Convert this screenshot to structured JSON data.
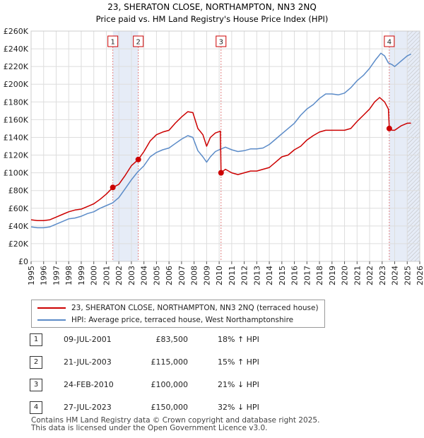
{
  "chart_data": {
    "type": "line",
    "title": "23, SHERATON CLOSE, NORTHAMPTON, NN3 2NQ",
    "subtitle": "Price paid vs. HM Land Registry's House Price Index (HPI)",
    "xlabel": "",
    "ylabel": "",
    "xlim": [
      1995,
      2026
    ],
    "ylim": [
      0,
      260000
    ],
    "y_ticks": [
      0,
      20000,
      40000,
      60000,
      80000,
      100000,
      120000,
      140000,
      160000,
      180000,
      200000,
      220000,
      240000,
      260000
    ],
    "y_tick_labels": [
      "£0",
      "£20K",
      "£40K",
      "£60K",
      "£80K",
      "£100K",
      "£120K",
      "£140K",
      "£160K",
      "£180K",
      "£200K",
      "£220K",
      "£240K",
      "£260K"
    ],
    "x_ticks": [
      1995,
      1996,
      1997,
      1998,
      1999,
      2000,
      2001,
      2002,
      2003,
      2004,
      2005,
      2006,
      2007,
      2008,
      2009,
      2010,
      2011,
      2012,
      2013,
      2014,
      2015,
      2016,
      2017,
      2018,
      2019,
      2020,
      2021,
      2022,
      2023,
      2024,
      2025,
      2026
    ],
    "x_tick_labels": [
      "1995",
      "1996",
      "1997",
      "1998",
      "1999",
      "2000",
      "2001",
      "2002",
      "2003",
      "2004",
      "2005",
      "2006",
      "2007",
      "2008",
      "2009",
      "2010",
      "2011",
      "2012",
      "2013",
      "2014",
      "2015",
      "2016",
      "2017",
      "2018",
      "2019",
      "2020",
      "2021",
      "2022",
      "2023",
      "2024",
      "2025",
      "2026"
    ],
    "grid": true,
    "shaded_ranges": [
      [
        2001.52,
        2003.55
      ],
      [
        2023.57,
        2026
      ]
    ],
    "hatched_from": 2025.0,
    "series": [
      {
        "name": "23, SHERATON CLOSE, NORTHAMPTON, NN3 2NQ (terraced house)",
        "color": "#cc0000",
        "x": [
          1995.0,
          1995.5,
          1996.0,
          1996.5,
          1997.0,
          1997.5,
          1998.0,
          1998.5,
          1999.0,
          1999.5,
          2000.0,
          2000.5,
          2001.0,
          2001.52,
          2002.0,
          2002.5,
          2003.0,
          2003.55,
          2004.0,
          2004.5,
          2005.0,
          2005.5,
          2006.0,
          2006.5,
          2007.0,
          2007.5,
          2007.9,
          2008.3,
          2008.7,
          2009.0,
          2009.3,
          2009.7,
          2010.1,
          2010.15,
          2010.5,
          2011.0,
          2011.5,
          2012.0,
          2012.5,
          2013.0,
          2013.5,
          2014.0,
          2014.5,
          2015.0,
          2015.5,
          2016.0,
          2016.5,
          2017.0,
          2017.5,
          2018.0,
          2018.5,
          2019.0,
          2019.5,
          2020.0,
          2020.5,
          2021.0,
          2021.5,
          2022.0,
          2022.4,
          2022.8,
          2023.2,
          2023.5,
          2023.57,
          2023.8,
          2024.0,
          2024.5,
          2025.0,
          2025.3
        ],
        "values": [
          47000,
          46000,
          46000,
          47000,
          50000,
          53000,
          56000,
          58000,
          59000,
          62000,
          65000,
          70000,
          76000,
          83500,
          87000,
          97000,
          108000,
          115000,
          124000,
          136000,
          143000,
          146000,
          148000,
          156000,
          163000,
          169000,
          168000,
          150000,
          143000,
          130000,
          140000,
          145000,
          147000,
          100000,
          104000,
          100000,
          98000,
          100000,
          102000,
          102000,
          104000,
          106000,
          112000,
          118000,
          120000,
          126000,
          130000,
          137000,
          142000,
          146000,
          148000,
          148000,
          148000,
          148000,
          150000,
          158000,
          165000,
          172000,
          180000,
          185000,
          180000,
          172000,
          150000,
          148000,
          148000,
          153000,
          156000,
          156000
        ]
      },
      {
        "name": "HPI: Average price, terraced house, West Northamptonshire",
        "color": "#5b8bc8",
        "x": [
          1995.0,
          1995.5,
          1996.0,
          1996.5,
          1997.0,
          1997.5,
          1998.0,
          1998.5,
          1999.0,
          1999.5,
          2000.0,
          2000.5,
          2001.0,
          2001.5,
          2002.0,
          2002.5,
          2003.0,
          2003.5,
          2004.0,
          2004.5,
          2005.0,
          2005.5,
          2006.0,
          2006.5,
          2007.0,
          2007.5,
          2007.9,
          2008.3,
          2008.7,
          2009.0,
          2009.3,
          2009.7,
          2010.0,
          2010.5,
          2011.0,
          2011.5,
          2012.0,
          2012.5,
          2013.0,
          2013.5,
          2014.0,
          2014.5,
          2015.0,
          2015.5,
          2016.0,
          2016.5,
          2017.0,
          2017.5,
          2018.0,
          2018.5,
          2019.0,
          2019.5,
          2020.0,
          2020.5,
          2021.0,
          2021.5,
          2022.0,
          2022.5,
          2022.9,
          2023.2,
          2023.5,
          2023.8,
          2024.0,
          2024.5,
          2025.0,
          2025.3
        ],
        "values": [
          39000,
          38000,
          38000,
          39000,
          42000,
          45000,
          48000,
          49000,
          51000,
          54000,
          56000,
          60000,
          63000,
          66000,
          72000,
          82000,
          92000,
          101000,
          108000,
          118000,
          123000,
          126000,
          128000,
          133000,
          138000,
          142000,
          140000,
          125000,
          118000,
          112000,
          118000,
          124000,
          126000,
          129000,
          126000,
          124000,
          125000,
          127000,
          127000,
          128000,
          132000,
          138000,
          144000,
          150000,
          156000,
          165000,
          172000,
          177000,
          184000,
          189000,
          189000,
          188000,
          190000,
          196000,
          204000,
          210000,
          218000,
          228000,
          235000,
          232000,
          224000,
          222000,
          220000,
          226000,
          232000,
          234000
        ]
      }
    ],
    "markers": [
      {
        "label": "1",
        "x": 2001.52,
        "y": 83500
      },
      {
        "label": "2",
        "x": 2003.55,
        "y": 115000
      },
      {
        "label": "3",
        "x": 2010.15,
        "y": 100000
      },
      {
        "label": "4",
        "x": 2023.57,
        "y": 150000
      }
    ]
  },
  "legend": {
    "property": "23, SHERATON CLOSE, NORTHAMPTON, NN3 2NQ (terraced house)",
    "hpi": "HPI: Average price, terraced house, West Northamptonshire"
  },
  "sales": [
    {
      "num": "1",
      "date": "09-JUL-2001",
      "price": "£83,500",
      "hpi": "18% ↑ HPI"
    },
    {
      "num": "2",
      "date": "21-JUL-2003",
      "price": "£115,000",
      "hpi": "15% ↑ HPI"
    },
    {
      "num": "3",
      "date": "24-FEB-2010",
      "price": "£100,000",
      "hpi": "21% ↓ HPI"
    },
    {
      "num": "4",
      "date": "27-JUL-2023",
      "price": "£150,000",
      "hpi": "32% ↓ HPI"
    }
  ],
  "footer": {
    "line1": "Contains HM Land Registry data © Crown copyright and database right 2025.",
    "line2": "This data is licensed under the Open Government Licence v3.0."
  }
}
